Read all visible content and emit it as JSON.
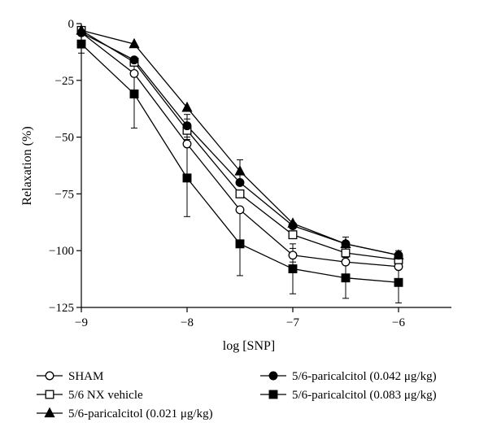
{
  "chart_data": {
    "type": "line",
    "xlabel": "log [SNP]",
    "ylabel": "Relaxation (%)",
    "xlim": [
      -9,
      -5.5
    ],
    "ylim": [
      -125,
      0
    ],
    "x_ticks": [
      -9,
      -8,
      -7,
      -6
    ],
    "x_tick_labels": [
      "−9",
      "−8",
      "−7",
      "−6"
    ],
    "y_ticks": [
      0,
      -25,
      -50,
      -75,
      -100,
      -125
    ],
    "y_tick_labels": [
      "0",
      "−25",
      "−50",
      "−75",
      "−100",
      "−125"
    ],
    "x": [
      -9,
      -8.5,
      -8,
      -7.5,
      -7,
      -6.5,
      -6
    ],
    "legend_position": "bottom",
    "series": [
      {
        "name": "SHAM",
        "marker": "open-circle",
        "values": [
          -4,
          -22,
          -53,
          -82,
          -102,
          -105,
          -107
        ],
        "error": [
          0,
          0,
          0,
          0,
          3,
          0,
          0
        ]
      },
      {
        "name": "5/6 NX vehicle",
        "marker": "open-square",
        "values": [
          -3,
          -17,
          -47,
          -75,
          -93,
          -101,
          -104
        ],
        "error": [
          0,
          0,
          5,
          0,
          0,
          0,
          0
        ]
      },
      {
        "name": "5/6-paricalcitol (0.021 μg/kg)",
        "marker": "filled-triangle",
        "values": [
          -3,
          -9,
          -37,
          -65,
          -88,
          -97,
          -102
        ],
        "error": [
          0,
          0,
          0,
          5,
          0,
          0,
          0
        ]
      },
      {
        "name": "5/6-paricalcitol (0.042 μg/kg)",
        "marker": "filled-circle",
        "values": [
          -4,
          -16,
          -45,
          -70,
          -89,
          -97,
          -102
        ],
        "error": [
          0,
          0,
          5,
          0,
          0,
          3,
          2
        ]
      },
      {
        "name": "5/6-paricalcitol (0.083 μg/kg)",
        "marker": "filled-square",
        "values": [
          -9,
          -31,
          -68,
          -97,
          -108,
          -112,
          -114
        ],
        "error": [
          4,
          15,
          17,
          14,
          11,
          9,
          9
        ]
      }
    ]
  }
}
